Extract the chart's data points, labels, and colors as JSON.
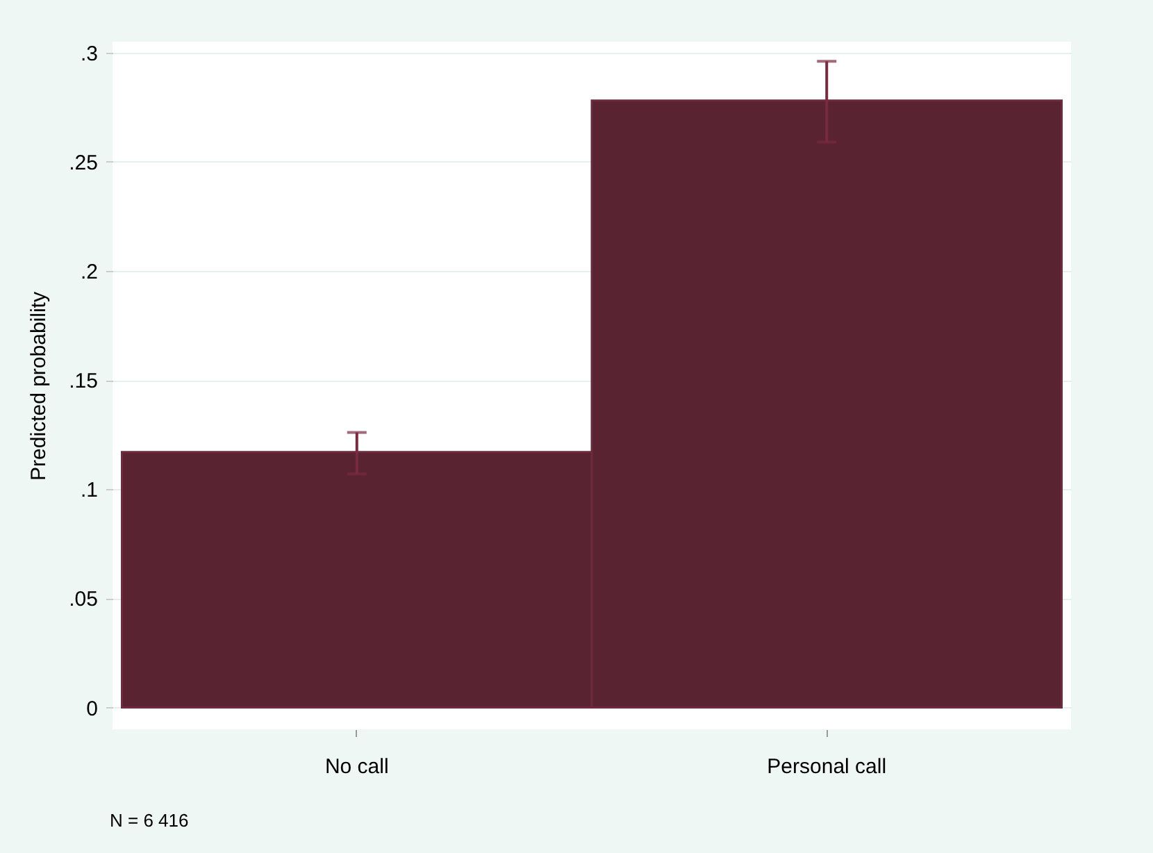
{
  "chart_data": {
    "type": "bar",
    "ylabel": "Predicted probability",
    "categories": [
      "No call",
      "Personal call"
    ],
    "values": [
      0.117,
      0.278
    ],
    "color": "#5a2331",
    "errors": [
      [
        0.107,
        0.126
      ],
      [
        0.259,
        0.296
      ]
    ],
    "ylim": [
      -0.01,
      0.305
    ],
    "yticks": [
      {
        "value": 0,
        "label": "0"
      },
      {
        "value": 0.05,
        "label": ".05"
      },
      {
        "value": 0.1,
        "label": ".1"
      },
      {
        "value": 0.15,
        "label": ".15"
      },
      {
        "value": 0.2,
        "label": ".2"
      },
      {
        "value": 0.25,
        "label": ".25"
      },
      {
        "value": 0.3,
        "label": ".3"
      }
    ],
    "grid": "y",
    "annotations": [
      "N = 6 416"
    ]
  }
}
